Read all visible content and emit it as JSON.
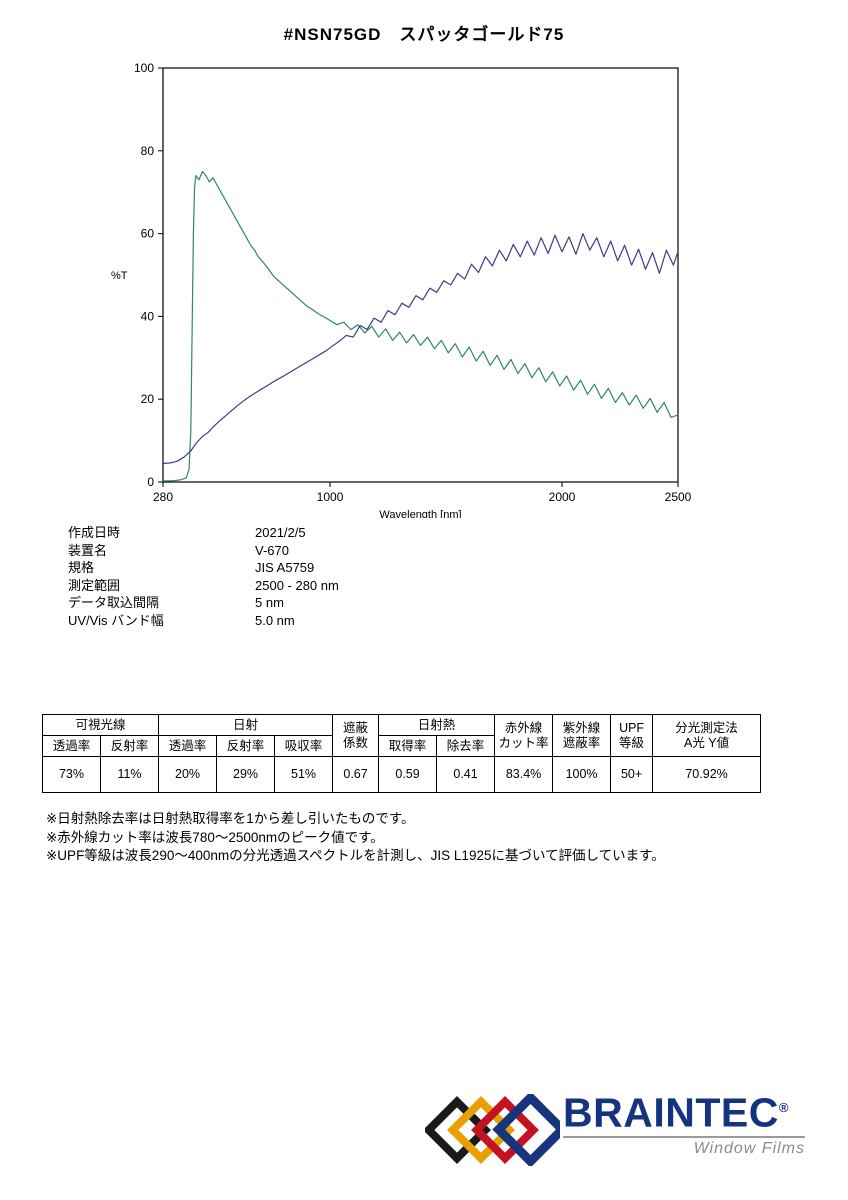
{
  "title": "#NSN75GD　スパッタゴールド75",
  "chart_data": {
    "type": "line",
    "title": "",
    "xlabel": "Wavelength [nm]",
    "ylabel": "%T",
    "xlim": [
      280,
      2500
    ],
    "ylim": [
      0,
      100
    ],
    "x_ticks": [
      280,
      1000,
      2000,
      2500
    ],
    "y_ticks": [
      0,
      20,
      40,
      60,
      80,
      100
    ],
    "grid": false,
    "legend": "none",
    "frame_color": "#000000",
    "series": [
      {
        "name": "green",
        "color": "#2e8b57",
        "points": [
          [
            280,
            0.3
          ],
          [
            320,
            0.3
          ],
          [
            355,
            0.5
          ],
          [
            380,
            1
          ],
          [
            392,
            3
          ],
          [
            400,
            12
          ],
          [
            406,
            38
          ],
          [
            411,
            60
          ],
          [
            416,
            71
          ],
          [
            422,
            74
          ],
          [
            435,
            73
          ],
          [
            450,
            75
          ],
          [
            465,
            74
          ],
          [
            480,
            72.5
          ],
          [
            495,
            73.5
          ],
          [
            510,
            72
          ],
          [
            525,
            70.5
          ],
          [
            540,
            69
          ],
          [
            555,
            67.5
          ],
          [
            570,
            66
          ],
          [
            585,
            64.5
          ],
          [
            600,
            63
          ],
          [
            615,
            61.5
          ],
          [
            630,
            60
          ],
          [
            645,
            58.5
          ],
          [
            660,
            57
          ],
          [
            675,
            56
          ],
          [
            690,
            54.5
          ],
          [
            705,
            53.5
          ],
          [
            720,
            52.5
          ],
          [
            740,
            51
          ],
          [
            760,
            49.5
          ],
          [
            780,
            48.5
          ],
          [
            800,
            47.5
          ],
          [
            820,
            46.5
          ],
          [
            840,
            45.5
          ],
          [
            860,
            44.5
          ],
          [
            880,
            43.5
          ],
          [
            900,
            42.5
          ],
          [
            920,
            41.8
          ],
          [
            940,
            41
          ],
          [
            960,
            40.3
          ],
          [
            980,
            39.7
          ],
          [
            1000,
            39
          ],
          [
            1030,
            38
          ],
          [
            1060,
            38.6
          ],
          [
            1090,
            36.8
          ],
          [
            1120,
            38
          ],
          [
            1150,
            36
          ],
          [
            1180,
            37.6
          ],
          [
            1210,
            35
          ],
          [
            1240,
            37
          ],
          [
            1270,
            34.2
          ],
          [
            1300,
            36.2
          ],
          [
            1330,
            33.6
          ],
          [
            1360,
            35.6
          ],
          [
            1390,
            33
          ],
          [
            1420,
            35
          ],
          [
            1450,
            32.2
          ],
          [
            1480,
            34.2
          ],
          [
            1510,
            31.2
          ],
          [
            1540,
            33.4
          ],
          [
            1570,
            30.2
          ],
          [
            1600,
            32.6
          ],
          [
            1630,
            29.2
          ],
          [
            1660,
            31.6
          ],
          [
            1690,
            28.2
          ],
          [
            1720,
            30.6
          ],
          [
            1750,
            27.2
          ],
          [
            1780,
            29.6
          ],
          [
            1810,
            26.2
          ],
          [
            1840,
            28.6
          ],
          [
            1870,
            25.2
          ],
          [
            1900,
            27.6
          ],
          [
            1930,
            24.2
          ],
          [
            1960,
            26.6
          ],
          [
            1990,
            23.2
          ],
          [
            2020,
            25.6
          ],
          [
            2050,
            22.2
          ],
          [
            2080,
            24.6
          ],
          [
            2110,
            21.2
          ],
          [
            2140,
            23.6
          ],
          [
            2170,
            20.2
          ],
          [
            2200,
            22.6
          ],
          [
            2230,
            19.2
          ],
          [
            2260,
            21.6
          ],
          [
            2290,
            18.6
          ],
          [
            2320,
            21
          ],
          [
            2350,
            17.8
          ],
          [
            2380,
            20.2
          ],
          [
            2410,
            16.8
          ],
          [
            2440,
            19.2
          ],
          [
            2470,
            15.6
          ],
          [
            2500,
            16.2
          ]
        ]
      },
      {
        "name": "navy",
        "color": "#3c3c8e",
        "points": [
          [
            280,
            4.5
          ],
          [
            310,
            4.6
          ],
          [
            340,
            5
          ],
          [
            370,
            6
          ],
          [
            400,
            7.5
          ],
          [
            425,
            9.5
          ],
          [
            450,
            11
          ],
          [
            475,
            12
          ],
          [
            500,
            13.5
          ],
          [
            525,
            14.8
          ],
          [
            550,
            16
          ],
          [
            575,
            17.2
          ],
          [
            600,
            18.4
          ],
          [
            625,
            19.5
          ],
          [
            650,
            20.5
          ],
          [
            675,
            21.4
          ],
          [
            700,
            22.3
          ],
          [
            725,
            23.1
          ],
          [
            750,
            24
          ],
          [
            775,
            24.8
          ],
          [
            800,
            25.6
          ],
          [
            830,
            26.6
          ],
          [
            860,
            27.6
          ],
          [
            890,
            28.6
          ],
          [
            920,
            29.6
          ],
          [
            950,
            30.6
          ],
          [
            980,
            31.6
          ],
          [
            1010,
            32.8
          ],
          [
            1040,
            34
          ],
          [
            1070,
            35.4
          ],
          [
            1100,
            35
          ],
          [
            1130,
            37.8
          ],
          [
            1160,
            36.8
          ],
          [
            1190,
            39.6
          ],
          [
            1220,
            38.6
          ],
          [
            1250,
            41.4
          ],
          [
            1280,
            40.4
          ],
          [
            1310,
            43.2
          ],
          [
            1340,
            42.2
          ],
          [
            1370,
            45
          ],
          [
            1400,
            44
          ],
          [
            1430,
            46.8
          ],
          [
            1460,
            45.8
          ],
          [
            1490,
            48.6
          ],
          [
            1520,
            47.6
          ],
          [
            1550,
            50.4
          ],
          [
            1580,
            49
          ],
          [
            1610,
            52.6
          ],
          [
            1640,
            50.6
          ],
          [
            1670,
            54.4
          ],
          [
            1700,
            52.2
          ],
          [
            1730,
            56
          ],
          [
            1760,
            53.4
          ],
          [
            1790,
            57.4
          ],
          [
            1820,
            54.4
          ],
          [
            1850,
            58.2
          ],
          [
            1880,
            54.8
          ],
          [
            1910,
            59
          ],
          [
            1940,
            55.2
          ],
          [
            1970,
            59.6
          ],
          [
            2000,
            55.6
          ],
          [
            2030,
            59.2
          ],
          [
            2060,
            55
          ],
          [
            2090,
            60
          ],
          [
            2120,
            56
          ],
          [
            2150,
            59
          ],
          [
            2180,
            54.4
          ],
          [
            2210,
            58.2
          ],
          [
            2240,
            53.4
          ],
          [
            2270,
            57.2
          ],
          [
            2300,
            52.4
          ],
          [
            2330,
            56.2
          ],
          [
            2360,
            51.4
          ],
          [
            2390,
            55.4
          ],
          [
            2420,
            50.4
          ],
          [
            2450,
            56
          ],
          [
            2480,
            52.4
          ],
          [
            2500,
            55.6
          ]
        ]
      }
    ]
  },
  "metadata": {
    "rows": [
      {
        "label": "作成日時",
        "value": "2021/2/5"
      },
      {
        "label": "装置名",
        "value": "V-670"
      },
      {
        "label": "規格",
        "value": "JIS A5759"
      },
      {
        "label": "測定範囲",
        "value": "2500 - 280 nm"
      },
      {
        "label": "データ取込間隔",
        "value": "5 nm"
      },
      {
        "label": "UV/Vis バンド幅",
        "value": "5.0 nm"
      }
    ]
  },
  "table": {
    "groups": [
      {
        "label": "可視光線"
      },
      {
        "label": "日射"
      },
      {
        "label": "遮蔽\n係数"
      },
      {
        "label": "日射熱"
      },
      {
        "label": "赤外線\nカット率"
      },
      {
        "label": "紫外線\n遮蔽率"
      },
      {
        "label": "UPF\n等級"
      },
      {
        "label": "分光測定法\nA光 Y値"
      }
    ],
    "subheaders": [
      "透過率",
      "反射率",
      "透過率",
      "反射率",
      "吸収率",
      "取得率",
      "除去率"
    ],
    "values": [
      "73%",
      "11%",
      "20%",
      "29%",
      "51%",
      "0.67",
      "0.59",
      "0.41",
      "83.4%",
      "100%",
      "50+",
      "70.92%"
    ]
  },
  "notes": [
    "※日射熱除去率は日射熱取得率を1から差し引いたものです。",
    "※赤外線カット率は波長780～2500nmのピーク値です。",
    "※UPF等級は波長290～400nmの分光透過スペクトルを計測し、JIS L1925に基づいて評価しています。"
  ],
  "logo": {
    "brand": "BRAINTEC",
    "registered": "®",
    "tagline": "Window Films",
    "brand_color": "#16337f",
    "colors": {
      "black": "#1a1a1a",
      "yellow": "#e8a000",
      "red": "#c41220",
      "blue": "#17357f"
    }
  }
}
